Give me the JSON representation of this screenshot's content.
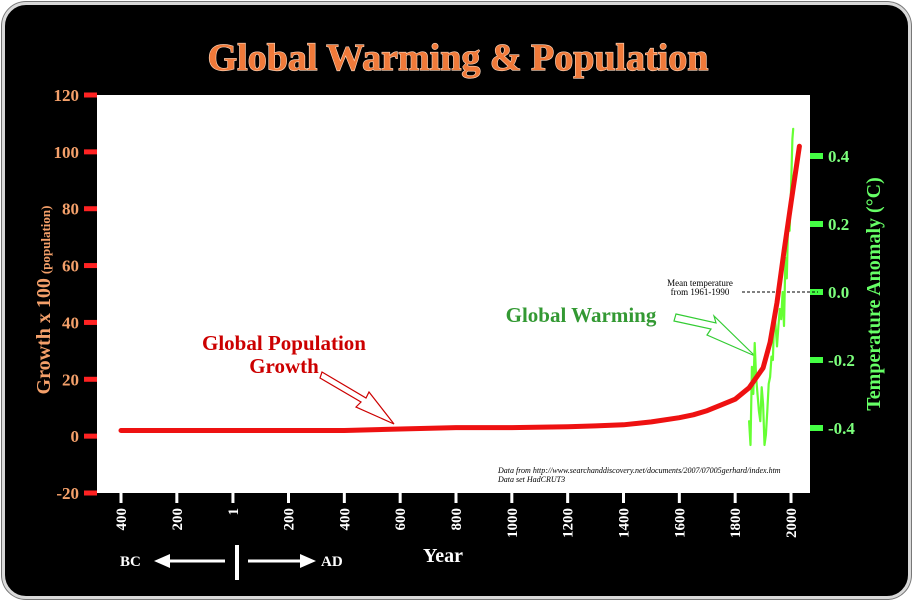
{
  "title": "Global Warming & Population",
  "chart_data": {
    "type": "line",
    "title": "Global Warming & Population",
    "xlabel": "Year",
    "ylabel_left": "Growth x 100",
    "ylabel_left_sub": "(population)",
    "ylabel_right": "Temperature Anomaly (°C)",
    "x_tick_labels": [
      "400",
      "200",
      "1",
      "200",
      "400",
      "600",
      "800",
      "1000",
      "1200",
      "1400",
      "1600",
      "1800",
      "2000"
    ],
    "x_tick_values": [
      -400,
      -200,
      1,
      200,
      400,
      600,
      800,
      1000,
      1200,
      1400,
      1600,
      1800,
      2000
    ],
    "xlim": [
      -420,
      2060
    ],
    "y_left_ticks": [
      120,
      100,
      80,
      60,
      40,
      20,
      0,
      -20
    ],
    "y_left_lim": [
      -20,
      120
    ],
    "y_right_ticks": [
      "0.4",
      "0.2",
      "0.0",
      "-0.2",
      "-0.4"
    ],
    "y_right_tick_values": [
      0.4,
      0.2,
      0.0,
      -0.2,
      -0.4
    ],
    "grid": false,
    "series": [
      {
        "name": "Global Population Growth",
        "axis": "left",
        "color": "#ee1111",
        "x": [
          -400,
          -200,
          1,
          200,
          400,
          600,
          800,
          1000,
          1200,
          1300,
          1400,
          1500,
          1600,
          1650,
          1700,
          1750,
          1800,
          1850,
          1900,
          1925,
          1950,
          1975,
          2000,
          2030
        ],
        "y": [
          2,
          2,
          2,
          2,
          2,
          2.5,
          3,
          3,
          3.3,
          3.6,
          4,
          5,
          6.5,
          7.5,
          9,
          11,
          13,
          17,
          24,
          33,
          47,
          65,
          82,
          102
        ]
      },
      {
        "name": "Global Warming",
        "axis": "right",
        "color": "#66ff33",
        "x": [
          1850,
          1855,
          1860,
          1865,
          1870,
          1875,
          1880,
          1885,
          1890,
          1895,
          1900,
          1905,
          1910,
          1915,
          1920,
          1925,
          1930,
          1935,
          1940,
          1945,
          1950,
          1955,
          1960,
          1965,
          1970,
          1975,
          1980,
          1985,
          1990,
          1995,
          2000,
          2005,
          2008
        ],
        "y": [
          -0.38,
          -0.45,
          -0.22,
          -0.3,
          -0.15,
          -0.25,
          -0.3,
          -0.35,
          -0.38,
          -0.28,
          -0.33,
          -0.45,
          -0.42,
          -0.35,
          -0.27,
          -0.25,
          -0.19,
          -0.2,
          -0.06,
          -0.1,
          -0.16,
          -0.1,
          -0.05,
          -0.08,
          0.0,
          -0.1,
          0.1,
          0.04,
          0.22,
          0.18,
          0.3,
          0.45,
          0.48
        ]
      }
    ],
    "mean_line": {
      "value": 0.0,
      "label_line1": "Mean temperature",
      "label_line2": "from 1961-1990"
    },
    "annotations": {
      "population_line1": "Global Population",
      "population_line2": "Growth",
      "warming": "Global Warming"
    },
    "source_line1": "Data from http://www.searchanddiscovery.net/documents/2007/07005gerhard/index.htm",
    "source_line2": "Data set HadCRUT3",
    "era_bc": "BC",
    "era_ad": "AD"
  },
  "colors": {
    "background": "#000000",
    "plot_area": "#ffffff",
    "population": "#ee1111",
    "temperature": "#66ff33",
    "left_axis": "#ff2222",
    "right_axis": "#44ff44"
  }
}
